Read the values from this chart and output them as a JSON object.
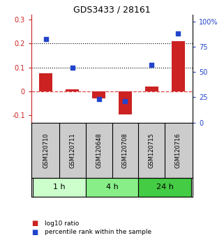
{
  "title": "GDS3433 / 28161",
  "samples": [
    "GSM120710",
    "GSM120711",
    "GSM120648",
    "GSM120708",
    "GSM120715",
    "GSM120716"
  ],
  "log10_ratio": [
    0.075,
    0.01,
    -0.03,
    -0.095,
    0.02,
    0.21
  ],
  "percentile_rank": [
    0.83,
    0.54,
    0.23,
    0.21,
    0.57,
    0.88
  ],
  "groups": [
    {
      "label": "1 h",
      "indices": [
        0,
        1
      ],
      "color": "#ccffcc"
    },
    {
      "label": "4 h",
      "indices": [
        2,
        3
      ],
      "color": "#88ee88"
    },
    {
      "label": "24 h",
      "indices": [
        4,
        5
      ],
      "color": "#44cc44"
    }
  ],
  "ylim_left": [
    -0.13,
    0.32
  ],
  "ylim_right": [
    0.0,
    1.067
  ],
  "yticks_left": [
    -0.1,
    0.0,
    0.1,
    0.2,
    0.3
  ],
  "ytick_labels_left": [
    "-0.1",
    "0",
    "0.1",
    "0.2",
    "0.3"
  ],
  "yticks_right": [
    0.0,
    0.25,
    0.5,
    0.75,
    1.0
  ],
  "ytick_labels_right": [
    "0",
    "25",
    "50",
    "75",
    "100%"
  ],
  "hlines": [
    0.1,
    0.2
  ],
  "bar_width": 0.5,
  "red_color": "#cc2222",
  "blue_color": "#2244cc",
  "dashed_zero_color": "#dd4444",
  "background_color": "#ffffff",
  "sample_bg_color": "#cccccc",
  "legend_red_label": "log10 ratio",
  "legend_blue_label": "percentile rank within the sample"
}
